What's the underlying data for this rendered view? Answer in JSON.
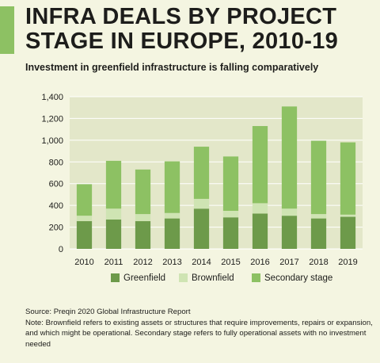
{
  "header": {
    "title": "INFRA DEALS BY PROJECT STAGE IN EUROPE, 2010-19",
    "subtitle": "Investment in greenfield infrastructure is falling comparatively"
  },
  "footer": {
    "source": "Source: Preqin 2020 Global Infrastructure Report",
    "note": "Note: Brownfield refers to existing assets or structures that require improvements, repairs or expansion, and which might be operational. Secondary stage refers to fully operational assets with no investment needed"
  },
  "colors": {
    "greenfield": "#6d9a4a",
    "brownfield": "#cfe4b3",
    "secondary": "#8dc163",
    "accent": "#8dc163",
    "gridline": "#ffffff",
    "plot_bg": "#e3e7c9"
  },
  "chart_data": {
    "type": "bar",
    "stacked": true,
    "title": "INFRA DEALS BY PROJECT STAGE IN EUROPE, 2010-19",
    "subtitle": "Investment in greenfield infrastructure is falling comparatively",
    "xlabel": "",
    "ylabel": "",
    "categories": [
      "2010",
      "2011",
      "2012",
      "2013",
      "2014",
      "2015",
      "2016",
      "2017",
      "2018",
      "2019"
    ],
    "series": [
      {
        "name": "Greenfield",
        "values": [
          255,
          270,
          255,
          280,
          370,
          290,
          325,
          305,
          280,
          295
        ]
      },
      {
        "name": "Brownfield",
        "values": [
          50,
          100,
          65,
          50,
          90,
          60,
          95,
          65,
          40,
          20
        ]
      },
      {
        "name": "Secondary stage",
        "values": [
          290,
          440,
          410,
          475,
          480,
          500,
          710,
          940,
          675,
          665
        ]
      }
    ],
    "ylim": [
      0,
      1400
    ],
    "yticks": [
      0,
      200,
      400,
      600,
      800,
      1000,
      1200,
      1400
    ],
    "ytick_labels": [
      "0",
      "200",
      "400",
      "600",
      "800",
      "1,000",
      "1,200",
      "1,400"
    ],
    "grid": true,
    "legend_position": "bottom"
  }
}
